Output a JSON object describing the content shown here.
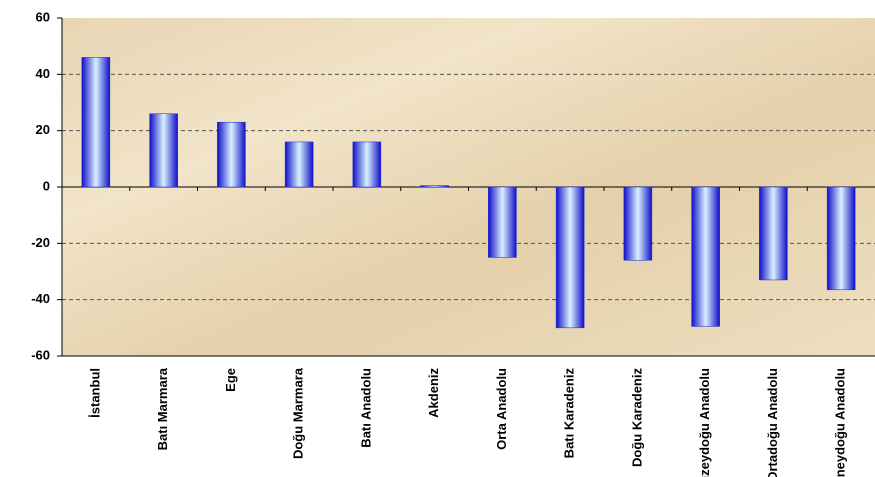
{
  "chart_data": {
    "type": "bar",
    "categories": [
      "İstanbul",
      "Batı Marmara",
      "Ege",
      "Doğu Marmara",
      "Batı Anadolu",
      "Akdeniz",
      "Orta Anadolu",
      "Batı Karadeniz",
      "Doğu Karadeniz",
      "Kuzeydoğu Anadolu",
      "Ortadoğu Anadolu",
      "Güneydoğu Anadolu"
    ],
    "values": [
      46,
      26,
      23,
      16,
      16,
      0.5,
      -25,
      -50,
      -26,
      -49.5,
      -33,
      -36.5
    ],
    "color": "#1c1cd8",
    "ylim": [
      -60,
      60
    ],
    "yticks": [
      -60,
      -40,
      -20,
      0,
      20,
      40,
      60
    ],
    "grid": true
  }
}
